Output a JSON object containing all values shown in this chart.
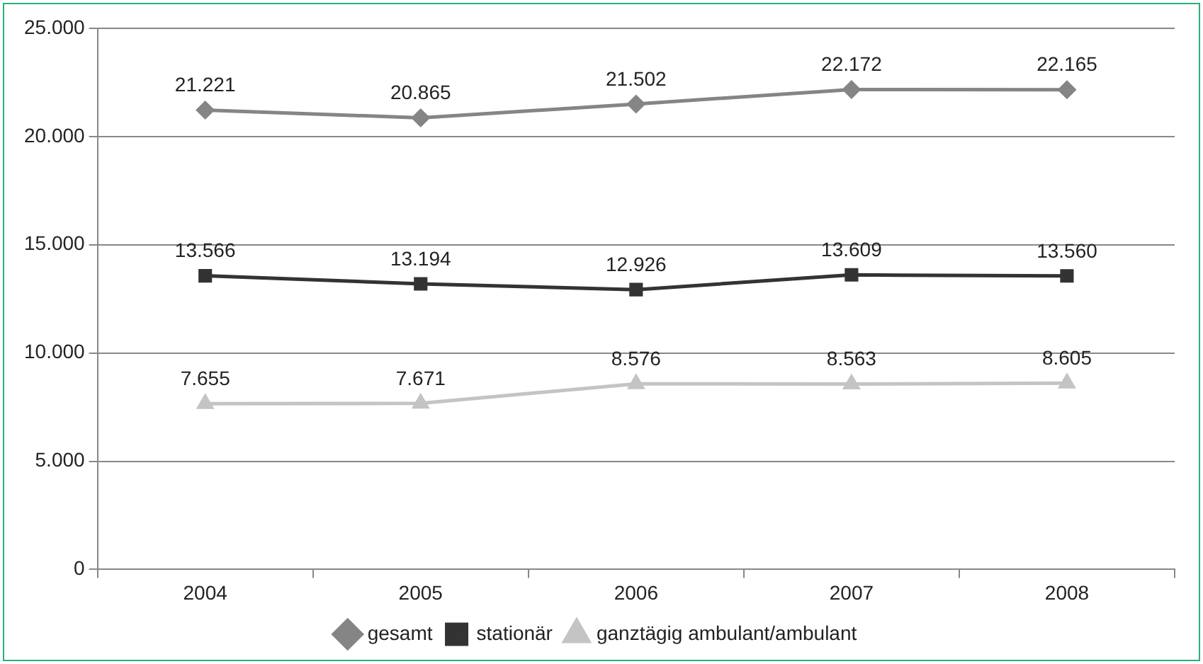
{
  "chart_data": {
    "type": "line",
    "categories": [
      "2004",
      "2005",
      "2006",
      "2007",
      "2008"
    ],
    "series": [
      {
        "name": "gesamt",
        "color": "#858585",
        "marker": "diamond",
        "values": [
          21221,
          20865,
          21502,
          22172,
          22165
        ],
        "value_labels": [
          "21.221",
          "20.865",
          "21.502",
          "22.172",
          "22.165"
        ]
      },
      {
        "name": "stationär",
        "color": "#333333",
        "marker": "square",
        "values": [
          13566,
          13194,
          12926,
          13609,
          13560
        ],
        "value_labels": [
          "13.566",
          "13.194",
          "12.926",
          "13.609",
          "13.560"
        ]
      },
      {
        "name": "ganztägig ambulant/ambulant",
        "color": "#c4c4c4",
        "marker": "triangle",
        "values": [
          7655,
          7671,
          8576,
          8563,
          8605
        ],
        "value_labels": [
          "7.655",
          "7.671",
          "8.576",
          "8.563",
          "8.605"
        ]
      }
    ],
    "ylim": [
      0,
      25000
    ],
    "yticks": [
      {
        "value": 0,
        "label": "0"
      },
      {
        "value": 5000,
        "label": "5.000"
      },
      {
        "value": 10000,
        "label": "10.000"
      },
      {
        "value": 15000,
        "label": "15.000"
      },
      {
        "value": 20000,
        "label": "20.000"
      },
      {
        "value": 25000,
        "label": "25.000"
      }
    ],
    "grid": "y",
    "legend": "bottom",
    "line_style": "solid"
  }
}
